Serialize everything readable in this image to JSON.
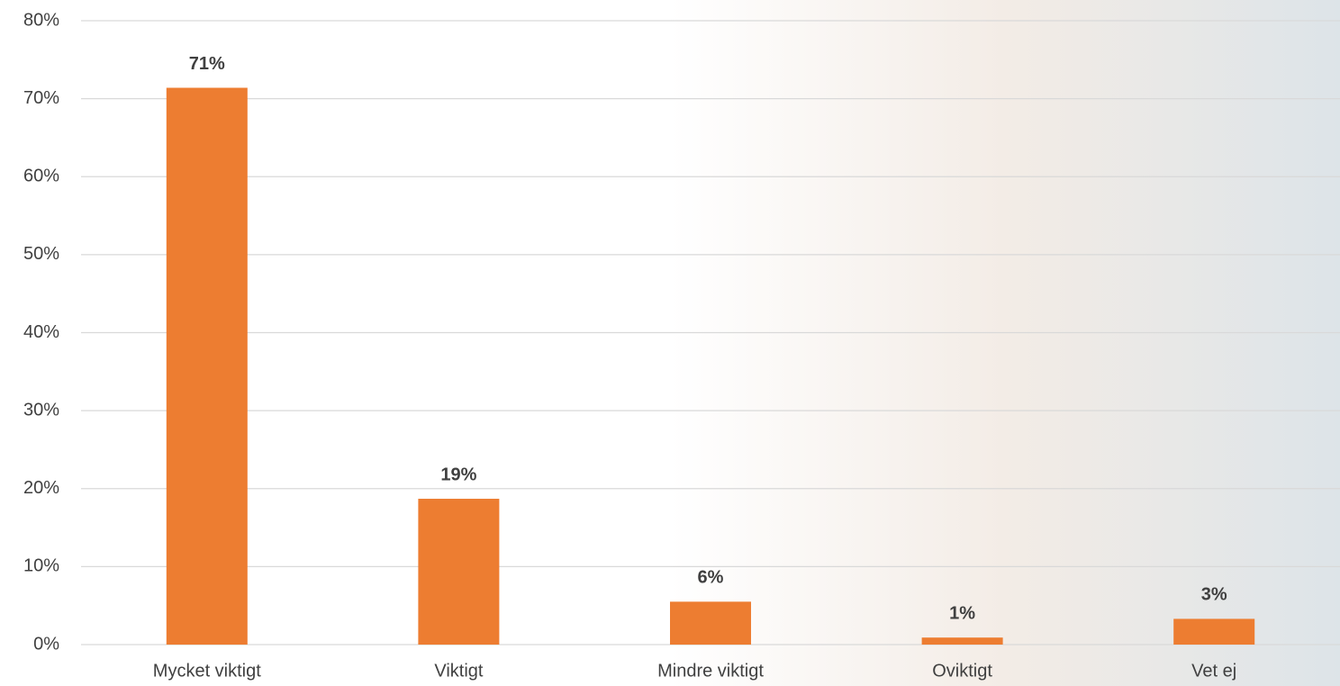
{
  "chart_data": {
    "type": "bar",
    "categories": [
      "Mycket viktigt",
      "Viktigt",
      "Mindre viktigt",
      "Oviktigt",
      "Vet ej"
    ],
    "values": [
      71.4,
      18.7,
      5.5,
      0.9,
      3.3
    ],
    "value_labels": [
      "71%",
      "19%",
      "6%",
      "1%",
      "3%"
    ],
    "color": "#ed7d31",
    "ylim": [
      0,
      80
    ],
    "yticks": [
      {
        "value": 0,
        "label": "0%"
      },
      {
        "value": 10,
        "label": "10%"
      },
      {
        "value": 20,
        "label": "20%"
      },
      {
        "value": 30,
        "label": "30%"
      },
      {
        "value": 40,
        "label": "40%"
      },
      {
        "value": 50,
        "label": "50%"
      },
      {
        "value": 60,
        "label": "60%"
      },
      {
        "value": 70,
        "label": "70%"
      },
      {
        "value": 80,
        "label": "80%"
      }
    ],
    "grid": true
  }
}
